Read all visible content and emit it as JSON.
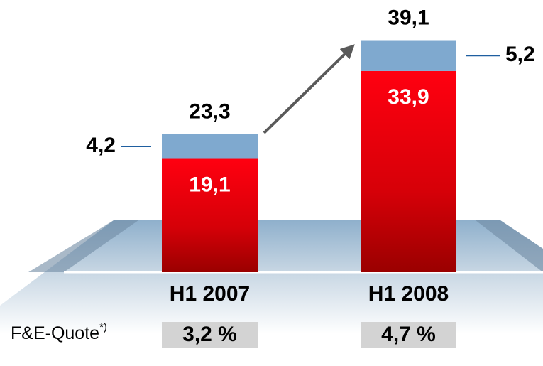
{
  "chart_data": {
    "type": "stacked-bar",
    "categories": [
      "H1 2007",
      "H1 2008"
    ],
    "series": [
      {
        "color": "#e8000a",
        "values": [
          19.1,
          33.9
        ],
        "value_labels": [
          "19,1",
          "33,9"
        ]
      },
      {
        "color": "#7fa9cf",
        "values": [
          4.2,
          5.2
        ],
        "value_labels": [
          "4,2",
          "5,2"
        ]
      }
    ],
    "total_labels": [
      "23,3",
      "39,1"
    ],
    "quote_label": "F&E-Quote",
    "quote_footnote": "*)",
    "quotes": [
      "3,2 %",
      "4,7 %"
    ]
  }
}
